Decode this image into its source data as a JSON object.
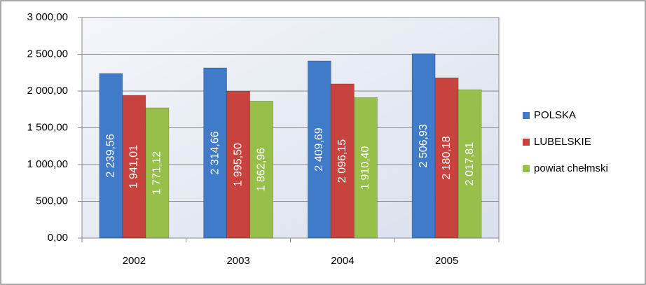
{
  "chart_data": {
    "type": "bar",
    "categories": [
      "2002",
      "2003",
      "2004",
      "2005"
    ],
    "series": [
      {
        "name": "POLSKA",
        "color": "#3f7bc8",
        "values": [
          2239.56,
          2314.66,
          2409.69,
          2506.93
        ],
        "value_labels": [
          "2 239,56",
          "2 314,66",
          "2 409,69",
          "2 506,93"
        ]
      },
      {
        "name": "LUBELSKIE",
        "color": "#c8423e",
        "values": [
          1941.01,
          1995.5,
          2096.15,
          2180.18
        ],
        "value_labels": [
          "1 941,01",
          "1 995,50",
          "2 096,15",
          "2 180,18"
        ]
      },
      {
        "name": "powiat chełmski",
        "color": "#98bf4a",
        "values": [
          1771.12,
          1862.96,
          1910.4,
          2017.81
        ],
        "value_labels": [
          "1 771,12",
          "1 862,96",
          "1 910,40",
          "2 017,81"
        ]
      }
    ],
    "ylim": [
      0,
      3000
    ],
    "yticks": [
      {
        "value": 0,
        "label": "0,00"
      },
      {
        "value": 500,
        "label": "500,00"
      },
      {
        "value": 1000,
        "label": "1 000,00"
      },
      {
        "value": 1500,
        "label": "1 500,00"
      },
      {
        "value": 2000,
        "label": "2 000,00"
      },
      {
        "value": 2500,
        "label": "2 500,00"
      },
      {
        "value": 3000,
        "label": "3 000,00"
      }
    ],
    "grid": true,
    "legend": "right"
  }
}
